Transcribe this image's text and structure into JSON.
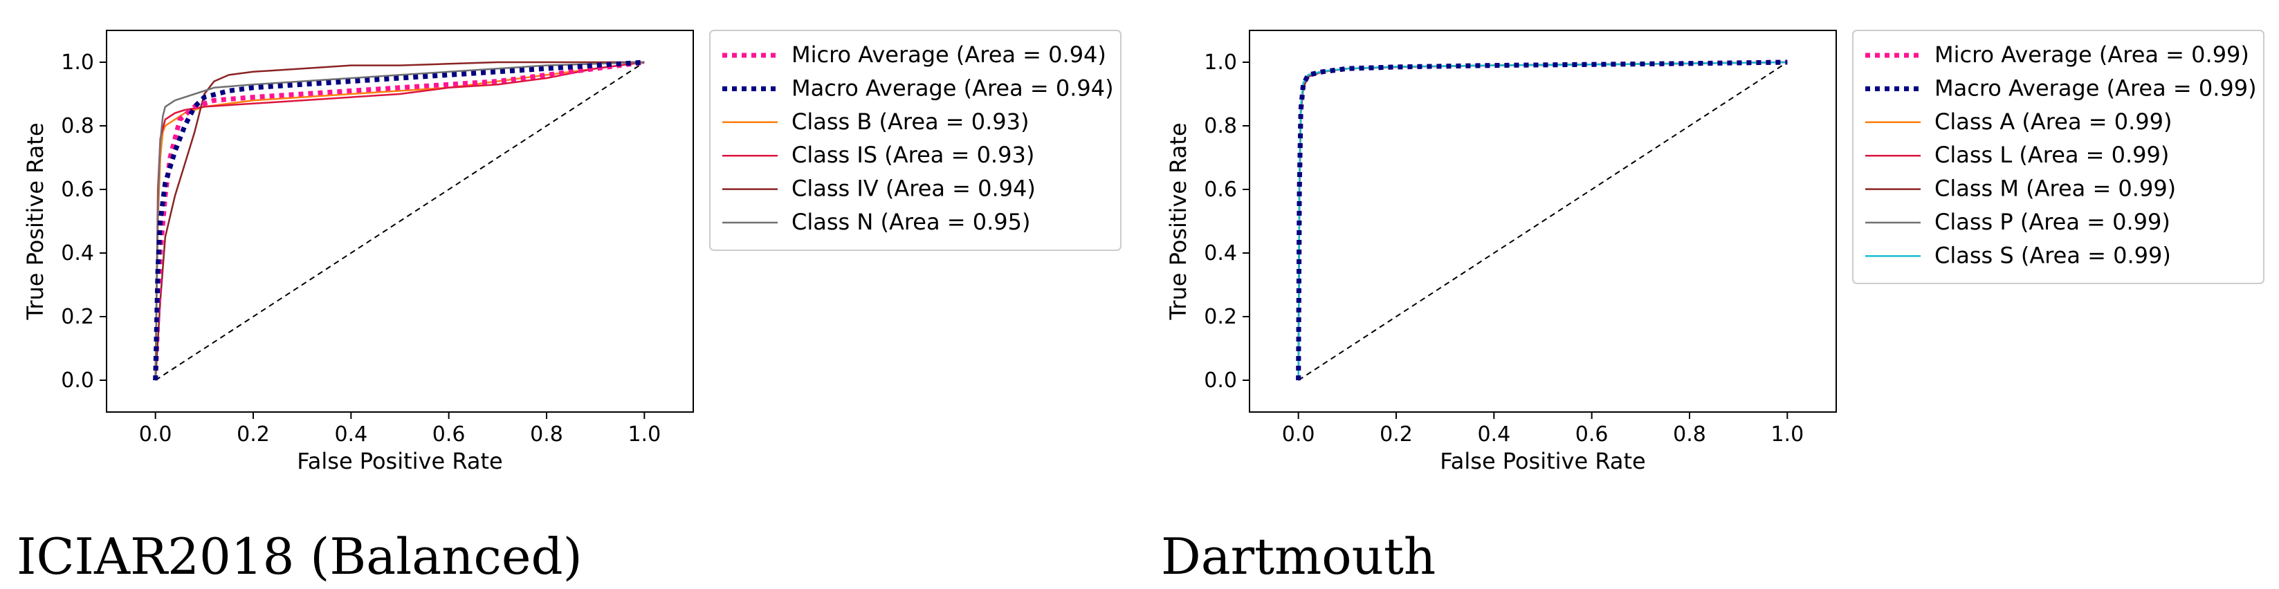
{
  "chart_data": [
    {
      "type": "line",
      "caption": "ICIAR2018 (Balanced)",
      "xlabel": "False Positive Rate",
      "ylabel": "True Positive Rate",
      "xlim": [
        -0.1,
        1.1
      ],
      "ylim": [
        -0.1,
        1.1
      ],
      "xticks": [
        "0.0",
        "0.2",
        "0.4",
        "0.6",
        "0.8",
        "1.0"
      ],
      "yticks": [
        "0.0",
        "0.2",
        "0.4",
        "0.6",
        "0.8",
        "1.0"
      ],
      "legend_position": "outside-right",
      "diagonal": {
        "x": [
          0,
          1
        ],
        "y": [
          0,
          1
        ],
        "color": "#000000",
        "style": "dashed"
      },
      "series": [
        {
          "name": "Micro Average (Area = 0.94)",
          "color": "#ff1493",
          "style": "dotted",
          "x": [
            0,
            0.005,
            0.01,
            0.02,
            0.03,
            0.05,
            0.08,
            0.12,
            0.2,
            0.3,
            0.4,
            0.5,
            0.6,
            0.7,
            0.8,
            0.9,
            1.0
          ],
          "y": [
            0,
            0.2,
            0.4,
            0.58,
            0.7,
            0.82,
            0.86,
            0.88,
            0.89,
            0.9,
            0.91,
            0.92,
            0.93,
            0.94,
            0.96,
            0.98,
            1.0
          ]
        },
        {
          "name": "Macro Average (Area = 0.94)",
          "color": "#000080",
          "style": "dotted",
          "x": [
            0,
            0.005,
            0.01,
            0.02,
            0.04,
            0.06,
            0.08,
            0.1,
            0.15,
            0.2,
            0.3,
            0.4,
            0.5,
            0.6,
            0.7,
            0.8,
            0.9,
            1.0
          ],
          "y": [
            0,
            0.35,
            0.5,
            0.62,
            0.72,
            0.8,
            0.86,
            0.89,
            0.91,
            0.92,
            0.93,
            0.94,
            0.95,
            0.96,
            0.97,
            0.98,
            0.99,
            1.0
          ]
        },
        {
          "name": "Class B (Area = 0.93)",
          "color": "#ff7f0e",
          "style": "solid",
          "x": [
            0,
            0.005,
            0.01,
            0.015,
            0.02,
            0.04,
            0.06,
            0.1,
            0.2,
            0.3,
            0.4,
            0.5,
            0.6,
            0.7,
            0.8,
            0.9,
            1.0
          ],
          "y": [
            0,
            0.5,
            0.7,
            0.78,
            0.8,
            0.82,
            0.84,
            0.86,
            0.88,
            0.89,
            0.9,
            0.91,
            0.92,
            0.94,
            0.96,
            0.98,
            1.0
          ]
        },
        {
          "name": "Class IS (Area = 0.93)",
          "color": "#dc143c",
          "style": "solid",
          "x": [
            0,
            0.005,
            0.01,
            0.02,
            0.04,
            0.06,
            0.1,
            0.2,
            0.3,
            0.4,
            0.5,
            0.6,
            0.7,
            0.8,
            0.9,
            1.0
          ],
          "y": [
            0,
            0.6,
            0.76,
            0.82,
            0.84,
            0.85,
            0.86,
            0.87,
            0.88,
            0.89,
            0.9,
            0.92,
            0.93,
            0.95,
            0.98,
            1.0
          ]
        },
        {
          "name": "Class IV (Area = 0.94)",
          "color": "#8b2323",
          "style": "solid",
          "x": [
            0,
            0.01,
            0.02,
            0.04,
            0.06,
            0.08,
            0.1,
            0.12,
            0.15,
            0.2,
            0.3,
            0.4,
            0.5,
            0.6,
            0.7,
            0.8,
            0.9,
            1.0
          ],
          "y": [
            0,
            0.25,
            0.45,
            0.58,
            0.68,
            0.78,
            0.9,
            0.94,
            0.96,
            0.97,
            0.98,
            0.99,
            0.99,
            0.995,
            1.0,
            1.0,
            1.0,
            1.0
          ]
        },
        {
          "name": "Class N (Area = 0.95)",
          "color": "#707070",
          "style": "solid",
          "x": [
            0,
            0.003,
            0.006,
            0.01,
            0.015,
            0.02,
            0.04,
            0.08,
            0.12,
            0.2,
            0.3,
            0.4,
            0.5,
            0.6,
            0.7,
            0.8,
            0.9,
            1.0
          ],
          "y": [
            0,
            0.35,
            0.6,
            0.75,
            0.83,
            0.86,
            0.88,
            0.9,
            0.92,
            0.93,
            0.94,
            0.95,
            0.96,
            0.97,
            0.98,
            0.99,
            0.995,
            1.0
          ]
        }
      ]
    },
    {
      "type": "line",
      "caption": "Dartmouth",
      "xlabel": "False Positive Rate",
      "ylabel": "True Positive Rate",
      "xlim": [
        -0.1,
        1.1
      ],
      "ylim": [
        -0.1,
        1.1
      ],
      "xticks": [
        "0.0",
        "0.2",
        "0.4",
        "0.6",
        "0.8",
        "1.0"
      ],
      "yticks": [
        "0.0",
        "0.2",
        "0.4",
        "0.6",
        "0.8",
        "1.0"
      ],
      "legend_position": "outside-right",
      "diagonal": {
        "x": [
          0,
          1
        ],
        "y": [
          0,
          1
        ],
        "color": "#000000",
        "style": "dashed"
      },
      "series": [
        {
          "name": "Micro Average (Area = 0.99)",
          "color": "#ff1493",
          "style": "dotted",
          "x": [
            0,
            0.002,
            0.005,
            0.01,
            0.02,
            0.05,
            0.1,
            0.2,
            0.4,
            0.6,
            0.8,
            1.0
          ],
          "y": [
            0,
            0.6,
            0.85,
            0.93,
            0.96,
            0.97,
            0.98,
            0.985,
            0.99,
            0.993,
            0.996,
            1.0
          ]
        },
        {
          "name": "Macro Average (Area = 0.99)",
          "color": "#000080",
          "style": "dotted",
          "x": [
            0,
            0.002,
            0.005,
            0.01,
            0.02,
            0.05,
            0.1,
            0.2,
            0.4,
            0.6,
            0.8,
            1.0
          ],
          "y": [
            0,
            0.6,
            0.85,
            0.93,
            0.96,
            0.97,
            0.98,
            0.985,
            0.99,
            0.993,
            0.996,
            1.0
          ]
        },
        {
          "name": "Class A (Area = 0.99)",
          "color": "#ff7f0e",
          "style": "solid",
          "x": [
            0,
            0.002,
            0.005,
            0.01,
            0.02,
            0.05,
            0.1,
            0.2,
            0.4,
            0.6,
            0.8,
            1.0
          ],
          "y": [
            0,
            0.62,
            0.86,
            0.93,
            0.96,
            0.97,
            0.98,
            0.985,
            0.99,
            0.993,
            0.996,
            1.0
          ]
        },
        {
          "name": "Class L (Area = 0.99)",
          "color": "#dc143c",
          "style": "solid",
          "x": [
            0,
            0.002,
            0.005,
            0.01,
            0.02,
            0.05,
            0.1,
            0.2,
            0.4,
            0.6,
            0.8,
            1.0
          ],
          "y": [
            0,
            0.6,
            0.85,
            0.93,
            0.96,
            0.97,
            0.98,
            0.985,
            0.99,
            0.993,
            0.996,
            1.0
          ]
        },
        {
          "name": "Class M (Area = 0.99)",
          "color": "#8b2323",
          "style": "solid",
          "x": [
            0,
            0.002,
            0.005,
            0.01,
            0.02,
            0.05,
            0.1,
            0.2,
            0.4,
            0.6,
            0.8,
            1.0
          ],
          "y": [
            0,
            0.58,
            0.84,
            0.92,
            0.955,
            0.97,
            0.98,
            0.985,
            0.99,
            0.993,
            0.996,
            1.0
          ]
        },
        {
          "name": "Class P (Area = 0.99)",
          "color": "#707070",
          "style": "solid",
          "x": [
            0,
            0.002,
            0.005,
            0.01,
            0.02,
            0.05,
            0.1,
            0.2,
            0.4,
            0.6,
            0.8,
            1.0
          ],
          "y": [
            0,
            0.6,
            0.85,
            0.93,
            0.96,
            0.97,
            0.98,
            0.985,
            0.99,
            0.993,
            0.996,
            1.0
          ]
        },
        {
          "name": "Class S (Area = 0.99)",
          "color": "#17becf",
          "style": "solid",
          "x": [
            0,
            0.002,
            0.005,
            0.01,
            0.02,
            0.05,
            0.1,
            0.2,
            0.4,
            0.6,
            0.8,
            1.0
          ],
          "y": [
            0,
            0.61,
            0.86,
            0.935,
            0.96,
            0.972,
            0.98,
            0.986,
            0.99,
            0.993,
            0.996,
            1.0
          ]
        }
      ]
    }
  ]
}
